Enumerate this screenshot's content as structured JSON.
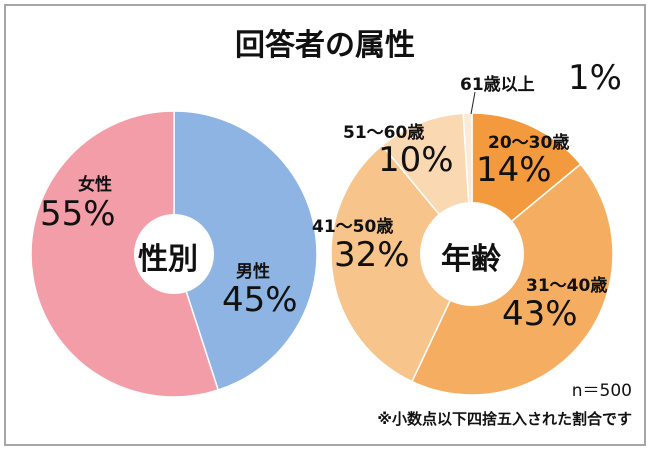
{
  "title": "回答者の属性",
  "chart_data": [
    {
      "type": "pie",
      "center_label": "性別",
      "start": "12 o'clock, clockwise",
      "categories": [
        "男性",
        "女性"
      ],
      "values": [
        45,
        55
      ],
      "value_labels": [
        "45%",
        "55%"
      ],
      "colors": [
        "#8DB4E2",
        "#F29DA7"
      ]
    },
    {
      "type": "pie",
      "center_label": "年齢",
      "start": "12 o'clock, clockwise",
      "categories": [
        "20～30歳",
        "31～40歳",
        "41～50歳",
        "51～60歳",
        "61歳以上"
      ],
      "values": [
        14,
        43,
        32,
        10,
        1
      ],
      "value_labels": [
        "14%",
        "43%",
        "32%",
        "10%",
        "1%"
      ],
      "colors": [
        "#F29A3D",
        "#F5AE61",
        "#F7C48C",
        "#FAD8B2",
        "#FCEAD6"
      ]
    }
  ],
  "footer": {
    "n": "n＝500",
    "note": "※小数点以下四捨五入された割合です"
  }
}
